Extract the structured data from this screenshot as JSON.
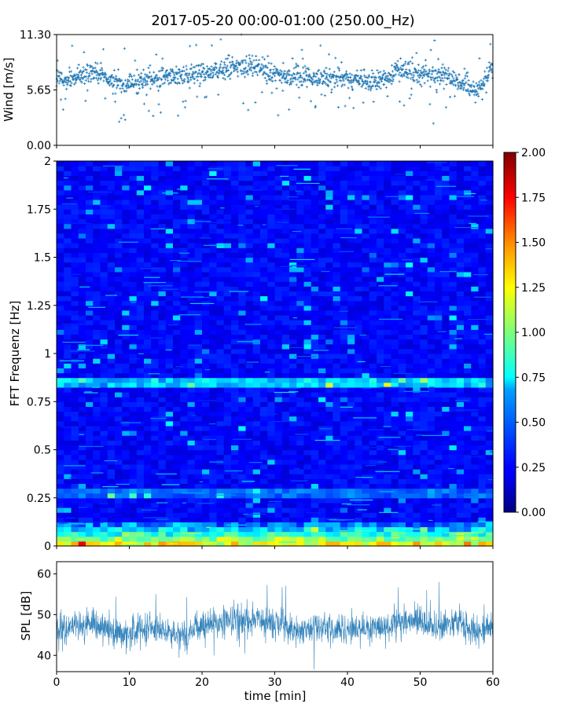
{
  "figure": {
    "title": "2017-05-20 00:00-01:00 (250.00_Hz)"
  },
  "chart_data": [
    {
      "type": "scatter",
      "panel": "wind",
      "ylabel": "Wind [m/s]",
      "xlim": [
        0,
        60
      ],
      "ylim": [
        0,
        11.3
      ],
      "yticks": [
        0,
        5.65,
        11.3
      ],
      "ytick_labels": [
        "0.00",
        "5.65",
        "11.30"
      ],
      "marker": "+",
      "color": "#1f77b4",
      "trend": {
        "x": [
          0,
          3,
          5,
          8,
          10,
          13,
          16,
          20,
          24,
          27,
          30,
          33,
          36,
          40,
          44,
          47,
          50,
          53,
          56,
          58,
          60
        ],
        "y": [
          6.6,
          6.9,
          7.6,
          6.5,
          6.2,
          6.9,
          7.1,
          7.3,
          7.9,
          8.2,
          7.1,
          7.0,
          6.9,
          6.9,
          6.4,
          7.6,
          7.3,
          6.9,
          6.3,
          5.4,
          8.3
        ]
      }
    },
    {
      "type": "heatmap",
      "panel": "spectrogram",
      "ylabel": "FFT Frequenz [Hz]",
      "xlim": [
        0,
        60
      ],
      "ylim": [
        0,
        2
      ],
      "yticks": [
        0,
        0.25,
        0.5,
        0.75,
        1,
        1.25,
        1.5,
        1.75,
        2
      ],
      "ytick_labels": [
        "0",
        "0.25",
        "0.5",
        "0.75",
        "1",
        "1.25",
        "1.5",
        "1.75",
        "2"
      ],
      "colormap": "jet",
      "colorbar": {
        "range": [
          0,
          2
        ],
        "ticks": [
          "0.00",
          "0.25",
          "0.50",
          "0.75",
          "1.00",
          "1.25",
          "1.50",
          "1.75",
          "2.00"
        ]
      },
      "features": {
        "low_freq_energy_hz": [
          0,
          0.12
        ],
        "band_hz": 0.85,
        "secondary_band_hz": 0.28
      }
    },
    {
      "type": "line",
      "panel": "spl",
      "ylabel": "SPL [dB]",
      "xlabel": "time [min]",
      "xlim": [
        0,
        60
      ],
      "ylim": [
        36,
        63
      ],
      "yticks": [
        40,
        50,
        60
      ],
      "ytick_labels": [
        "40",
        "50",
        "60"
      ],
      "xticks": [
        "0",
        "10",
        "20",
        "30",
        "40",
        "50",
        "60"
      ],
      "color": "#1f77b4",
      "trend": {
        "x": [
          0,
          5,
          9,
          13,
          17,
          21,
          26,
          30,
          33,
          37,
          41,
          45,
          48,
          52,
          55,
          58,
          60
        ],
        "y": [
          46,
          48,
          45,
          47,
          45,
          48,
          49,
          48,
          46,
          47,
          46,
          47,
          49,
          47,
          48,
          46,
          47
        ]
      }
    }
  ]
}
